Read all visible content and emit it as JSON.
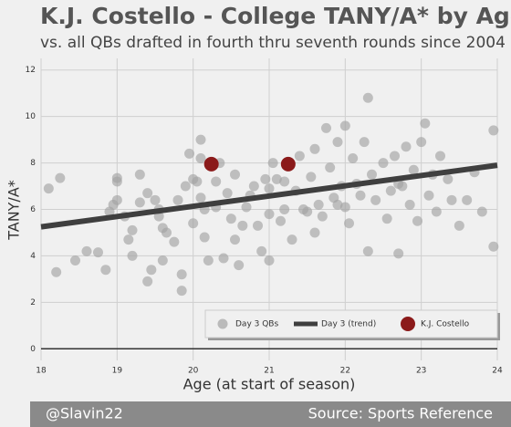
{
  "chart_data": {
    "type": "scatter",
    "title": "K.J. Costello - College TANY/A* by Age",
    "subtitle": "vs. all QBs drafted in fourth thru seventh rounds since 2004",
    "x_label": "Age (at start of season)",
    "y_label": "TANY/A*",
    "credit": "@Slavin22",
    "source": "Source: Sports Reference",
    "xlim": [
      18,
      24
    ],
    "ylim": [
      -0.5,
      12.5
    ],
    "xticks": [
      18,
      19,
      20,
      21,
      22,
      23,
      24
    ],
    "yticks": [
      0,
      2,
      4,
      6,
      8,
      10,
      12
    ],
    "grid": true,
    "legend": "lower right",
    "series": [
      {
        "name": "Day 3 QBs",
        "color": "#a3a3a3",
        "type": "scatter",
        "x": [
          18.1,
          18.25,
          18.2,
          18.45,
          18.6,
          18.75,
          18.85,
          18.9,
          18.95,
          19.0,
          19.0,
          19.0,
          19.1,
          19.15,
          19.2,
          19.2,
          19.3,
          19.3,
          19.4,
          19.4,
          19.45,
          19.5,
          19.55,
          19.6,
          19.6,
          19.65,
          19.75,
          19.8,
          19.85,
          19.85,
          19.9,
          19.95,
          20.0,
          20.0,
          20.05,
          20.1,
          20.15,
          20.2,
          20.15,
          20.3,
          20.3,
          20.1,
          20.1,
          20.35,
          20.4,
          20.45,
          20.5,
          20.55,
          20.6,
          20.65,
          20.7,
          20.75,
          20.8,
          20.85,
          20.9,
          20.95,
          21.0,
          21.0,
          21.0,
          21.05,
          21.1,
          21.15,
          21.2,
          21.3,
          21.35,
          21.4,
          21.45,
          21.5,
          21.55,
          21.6,
          21.65,
          21.7,
          21.75,
          21.8,
          21.85,
          21.9,
          21.95,
          22.0,
          22.0,
          22.05,
          22.1,
          22.15,
          22.2,
          22.25,
          22.3,
          22.3,
          22.35,
          22.4,
          22.5,
          22.55,
          22.6,
          22.65,
          22.7,
          22.7,
          22.8,
          22.85,
          22.9,
          22.95,
          23.0,
          23.05,
          23.1,
          23.15,
          23.2,
          23.25,
          23.35,
          23.4,
          23.5,
          23.6,
          23.7,
          23.8,
          23.95,
          23.95,
          21.6,
          21.2,
          20.55,
          21.9,
          22.75,
          19.55
        ],
        "values": [
          6.9,
          7.35,
          3.3,
          3.8,
          4.2,
          4.15,
          3.4,
          5.9,
          6.2,
          7.2,
          7.35,
          6.4,
          5.7,
          4.7,
          4.0,
          5.1,
          6.3,
          7.5,
          6.7,
          2.9,
          3.4,
          6.4,
          5.7,
          3.8,
          5.2,
          5.0,
          4.6,
          6.4,
          3.2,
          2.5,
          7.0,
          8.4,
          5.4,
          7.3,
          7.2,
          6.5,
          4.8,
          3.8,
          6.0,
          6.1,
          7.2,
          8.2,
          9.0,
          8.0,
          3.9,
          6.7,
          5.6,
          4.7,
          3.6,
          5.3,
          6.1,
          6.6,
          7.0,
          5.3,
          4.2,
          7.3,
          5.8,
          6.9,
          3.8,
          8.0,
          7.3,
          5.5,
          6.0,
          4.7,
          6.8,
          8.3,
          6.0,
          5.9,
          7.4,
          8.6,
          6.2,
          5.7,
          9.5,
          7.8,
          6.5,
          8.9,
          7.0,
          9.6,
          6.1,
          5.4,
          8.2,
          7.1,
          6.6,
          8.9,
          10.8,
          4.2,
          7.5,
          6.4,
          8.0,
          5.6,
          6.8,
          8.3,
          4.1,
          7.1,
          8.7,
          6.2,
          7.7,
          5.5,
          8.9,
          9.7,
          6.6,
          7.5,
          5.9,
          8.3,
          7.3,
          6.4,
          5.3,
          6.4,
          7.6,
          5.9,
          9.4,
          4.4,
          5.0,
          7.2,
          7.5,
          6.2,
          7.0,
          6.0
        ]
      },
      {
        "name": "Day 3 (trend)",
        "color": "#3f3f3f",
        "type": "line",
        "x": [
          18,
          24
        ],
        "values": [
          5.25,
          7.9
        ]
      },
      {
        "name": "K.J. Costello",
        "color": "#8b1a1a",
        "type": "scatter",
        "x": [
          20.24,
          21.25
        ],
        "values": [
          7.95,
          7.95
        ]
      }
    ]
  }
}
